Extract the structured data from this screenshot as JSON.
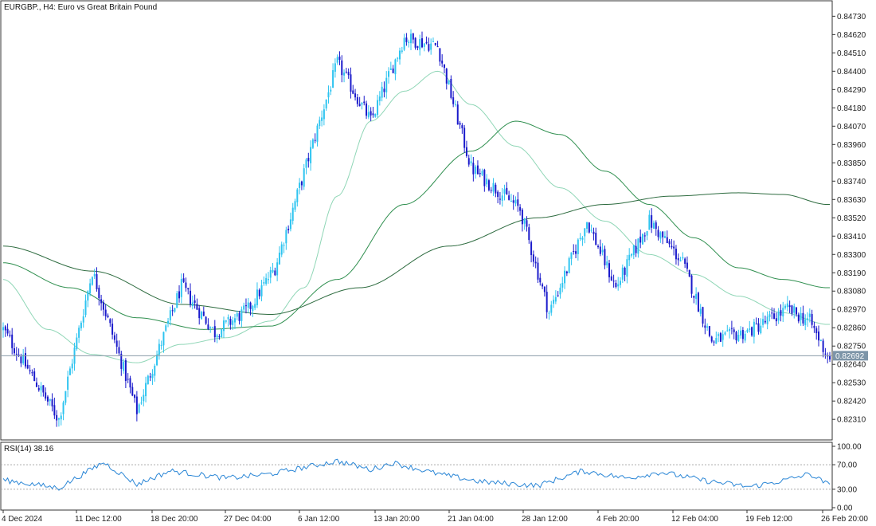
{
  "header": {
    "symbol": "EURGBP.",
    "timeframe": "H4",
    "description": "Euro vs Great Britain Pound",
    "title_text": "EURGBP., H4:  Euro vs Great Britain Pound"
  },
  "current_price": {
    "value": 0.82692,
    "label": "0.82692"
  },
  "rsi": {
    "label": "RSI(14) 38.16",
    "period": 14,
    "value": 38.16,
    "levels": [
      30,
      70
    ]
  },
  "colors": {
    "bull": "#2ec4f0",
    "bear": "#1a1acb",
    "ma_fast": "#8fd6b6",
    "ma_mid": "#2f8f4f",
    "ma_slow": "#2d6b3f",
    "rsi_line": "#2a86d6",
    "frame": "#333333",
    "price_line": "#8a9ba8",
    "price_tag_bg": "#7d95a8"
  },
  "chart_data": [
    {
      "type": "candlestick",
      "title": "EURGBP., H4:  Euro vs Great Britain Pound",
      "y_range": [
        0.8222,
        0.8477
      ],
      "y_ticks": [
        "0.84730",
        "0.84620",
        "0.84510",
        "0.84400",
        "0.84290",
        "0.84180",
        "0.84070",
        "0.83960",
        "0.83850",
        "0.83740",
        "0.83630",
        "0.83520",
        "0.83410",
        "0.83300",
        "0.83190",
        "0.83080",
        "0.82970",
        "0.82860",
        "0.82750",
        "0.82640",
        "0.82530",
        "0.82420",
        "0.82310"
      ],
      "x_labels": [
        "4 Dec 2024",
        "11 Dec 12:00",
        "18 Dec 20:00",
        "27 Dec 04:00",
        "6 Jan 12:00",
        "13 Jan 20:00",
        "21 Jan 04:00",
        "28 Jan 12:00",
        "4 Feb 20:00",
        "12 Feb 04:00",
        "19 Feb 12:00",
        "26 Feb 20:00"
      ],
      "key_closes": [
        {
          "bar": 0,
          "close": 0.8285
        },
        {
          "bar": 25,
          "close": 0.8231
        },
        {
          "bar": 40,
          "close": 0.832
        },
        {
          "bar": 60,
          "close": 0.8236
        },
        {
          "bar": 80,
          "close": 0.8311
        },
        {
          "bar": 95,
          "close": 0.8283
        },
        {
          "bar": 110,
          "close": 0.8297
        },
        {
          "bar": 122,
          "close": 0.8322
        },
        {
          "bar": 150,
          "close": 0.8445
        },
        {
          "bar": 165,
          "close": 0.841
        },
        {
          "bar": 180,
          "close": 0.846
        },
        {
          "bar": 195,
          "close": 0.8455
        },
        {
          "bar": 210,
          "close": 0.8382
        },
        {
          "bar": 232,
          "close": 0.8357
        },
        {
          "bar": 245,
          "close": 0.8295
        },
        {
          "bar": 262,
          "close": 0.835
        },
        {
          "bar": 275,
          "close": 0.831
        },
        {
          "bar": 290,
          "close": 0.835
        },
        {
          "bar": 305,
          "close": 0.8325
        },
        {
          "bar": 318,
          "close": 0.8278
        },
        {
          "bar": 335,
          "close": 0.8284
        },
        {
          "bar": 352,
          "close": 0.8297
        },
        {
          "bar": 362,
          "close": 0.829
        },
        {
          "bar": 370,
          "close": 0.8269
        }
      ],
      "moving_averages": [
        {
          "color": "#8fd6b6",
          "points": [
            [
              0,
              0.8315
            ],
            [
              20,
              0.8285
            ],
            [
              40,
              0.827
            ],
            [
              60,
              0.8265
            ],
            [
              80,
              0.8276
            ],
            [
              100,
              0.828
            ],
            [
              120,
              0.829
            ],
            [
              135,
              0.831
            ],
            [
              150,
              0.8365
            ],
            [
              165,
              0.841
            ],
            [
              180,
              0.8428
            ],
            [
              195,
              0.844
            ],
            [
              210,
              0.842
            ],
            [
              230,
              0.8395
            ],
            [
              250,
              0.837
            ],
            [
              270,
              0.835
            ],
            [
              290,
              0.833
            ],
            [
              310,
              0.8318
            ],
            [
              330,
              0.8305
            ],
            [
              350,
              0.8295
            ],
            [
              370,
              0.8288
            ]
          ]
        },
        {
          "color": "#2f8f4f",
          "points": [
            [
              0,
              0.8325
            ],
            [
              30,
              0.831
            ],
            [
              60,
              0.8292
            ],
            [
              90,
              0.8285
            ],
            [
              120,
              0.8287
            ],
            [
              150,
              0.8315
            ],
            [
              180,
              0.836
            ],
            [
              210,
              0.8392
            ],
            [
              230,
              0.841
            ],
            [
              250,
              0.8402
            ],
            [
              270,
              0.838
            ],
            [
              290,
              0.836
            ],
            [
              310,
              0.834
            ],
            [
              330,
              0.8322
            ],
            [
              350,
              0.8315
            ],
            [
              370,
              0.831
            ]
          ]
        },
        {
          "color": "#2d6b3f",
          "points": [
            [
              0,
              0.8335
            ],
            [
              40,
              0.832
            ],
            [
              80,
              0.83
            ],
            [
              120,
              0.8294
            ],
            [
              160,
              0.831
            ],
            [
              200,
              0.8335
            ],
            [
              240,
              0.8352
            ],
            [
              270,
              0.836
            ],
            [
              300,
              0.8365
            ],
            [
              330,
              0.8367
            ],
            [
              350,
              0.8366
            ],
            [
              370,
              0.836
            ]
          ]
        }
      ]
    },
    {
      "type": "line",
      "title": "RSI(14) 38.16",
      "y_range": [
        0,
        100
      ],
      "y_ticks": [
        "100.00",
        "70.00",
        "30.00",
        "0.00"
      ],
      "levels": [
        70,
        30
      ],
      "key_values": [
        {
          "bar": 0,
          "value": 45
        },
        {
          "bar": 25,
          "value": 32
        },
        {
          "bar": 45,
          "value": 74
        },
        {
          "bar": 60,
          "value": 38
        },
        {
          "bar": 75,
          "value": 60
        },
        {
          "bar": 100,
          "value": 48
        },
        {
          "bar": 120,
          "value": 55
        },
        {
          "bar": 150,
          "value": 76
        },
        {
          "bar": 165,
          "value": 62
        },
        {
          "bar": 175,
          "value": 73
        },
        {
          "bar": 195,
          "value": 55
        },
        {
          "bar": 215,
          "value": 42
        },
        {
          "bar": 240,
          "value": 36
        },
        {
          "bar": 260,
          "value": 60
        },
        {
          "bar": 280,
          "value": 48
        },
        {
          "bar": 295,
          "value": 58
        },
        {
          "bar": 315,
          "value": 44
        },
        {
          "bar": 335,
          "value": 34
        },
        {
          "bar": 350,
          "value": 44
        },
        {
          "bar": 362,
          "value": 55
        },
        {
          "bar": 370,
          "value": 38.16
        }
      ]
    }
  ]
}
